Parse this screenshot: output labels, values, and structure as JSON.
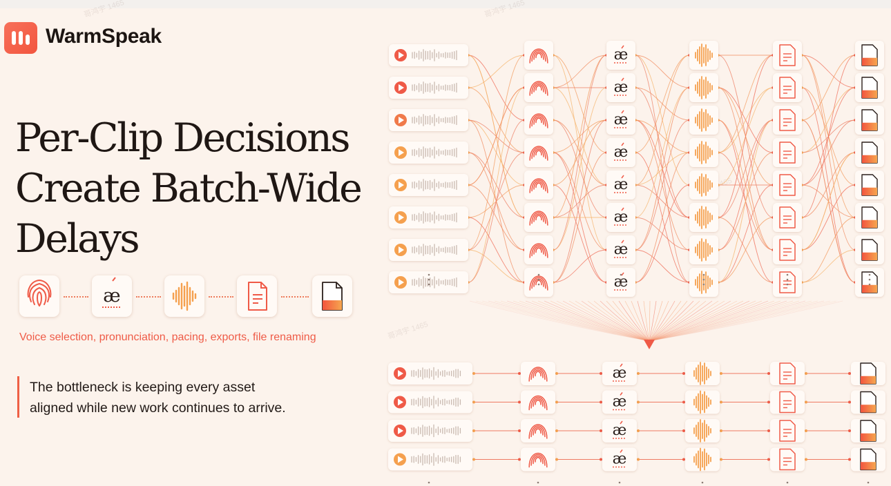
{
  "brand": {
    "name": "WarmSpeak",
    "logo_icon": "waveform-bars-icon",
    "color": "#f2553f"
  },
  "headline": {
    "lines": [
      "Per-Clip Decisions",
      "Create Batch-Wide",
      "Delays"
    ]
  },
  "steps": {
    "icons": [
      "fingerprint-icon",
      "pronunciation-ae-icon",
      "waveform-icon",
      "document-icon",
      "export-file-icon"
    ],
    "caption": "Voice selection, pronunciation, pacing, exports, file renaming"
  },
  "note": {
    "lines": [
      "The bottleneck is keeping every asset",
      "aligned while new work continues to arrive."
    ]
  },
  "diagram": {
    "top_rows": 8,
    "bottom_rows": 4,
    "node_icons": [
      "play-waveform-icon",
      "fingerprint-icon",
      "pronunciation-ae-icon",
      "waveform-icon",
      "document-icon",
      "export-file-icon"
    ],
    "pronunciation_glyph": "æ",
    "colors": {
      "red": "#ef5a47",
      "orange": "#f5a04e",
      "line": "#ee8a6a"
    }
  },
  "watermark": "哥鸿宇 1465"
}
